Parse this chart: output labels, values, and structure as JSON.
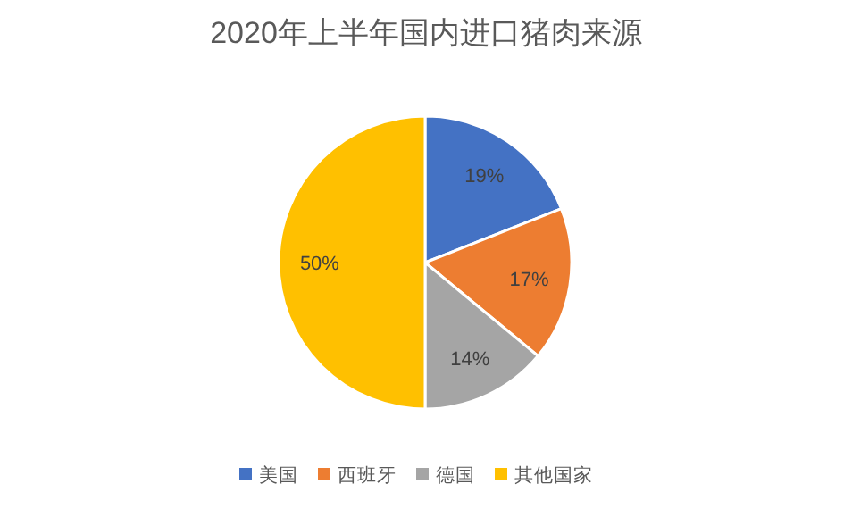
{
  "chart_data": {
    "type": "pie",
    "title": "2020年上半年国内进口猪肉来源",
    "categories": [
      "美国",
      "西班牙",
      "德国",
      "其他国家"
    ],
    "values": [
      19,
      17,
      14,
      50
    ],
    "colors": [
      "#4472c4",
      "#ed7d31",
      "#a5a5a5",
      "#ffc000"
    ],
    "value_labels": [
      "19%",
      "17%",
      "14%",
      "50%"
    ],
    "legend": "bottom"
  }
}
